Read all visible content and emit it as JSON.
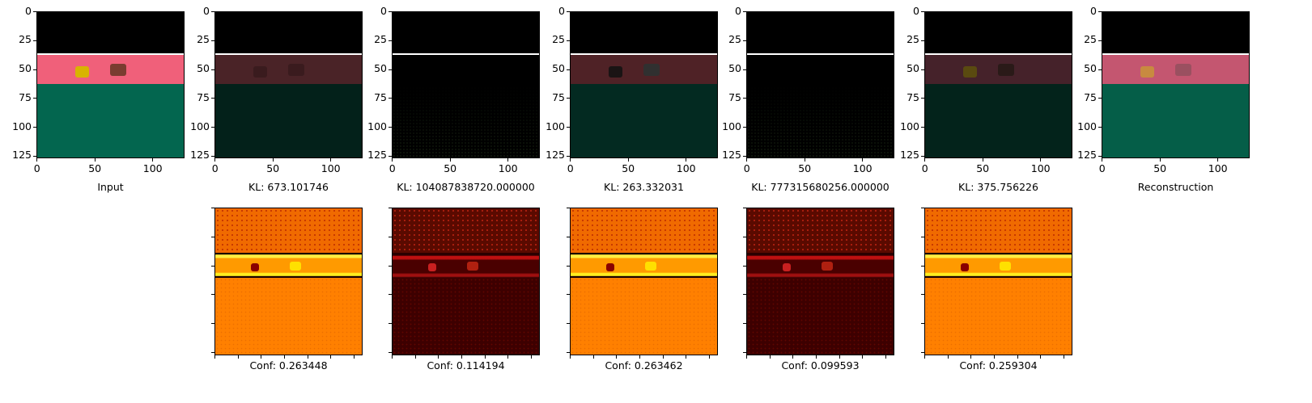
{
  "top_row": [
    {
      "caption": "Input",
      "wall": "#f0607a",
      "floor": "#03664f",
      "obj1": "#d8b400",
      "obj2": "#7a3c30",
      "dots": false
    },
    {
      "caption": "KL: 673.101746",
      "wall": "#4a2327",
      "floor": "#03211a",
      "obj1": "#3a1b1e",
      "obj2": "#3a1b1e",
      "dots": false
    },
    {
      "caption": "KL: 104087838720.000000",
      "wall": "#000000",
      "floor": "#000000",
      "obj1": "#000000",
      "obj2": "#000000",
      "dots": true
    },
    {
      "caption": "KL: 263.332031",
      "wall": "#4f2226",
      "floor": "#032a21",
      "obj1": "#1a1414",
      "obj2": "#303030",
      "dots": false
    },
    {
      "caption": "KL: 777315680256.000000",
      "wall": "#000000",
      "floor": "#000000",
      "obj1": "#000000",
      "obj2": "#000000",
      "dots": true
    },
    {
      "caption": "KL: 375.756226",
      "wall": "#45222a",
      "floor": "#03231b",
      "obj1": "#5a4a10",
      "obj2": "#2a1a18",
      "dots": false
    },
    {
      "caption": "Reconstruction",
      "wall": "#c45670",
      "floor": "#055e48",
      "obj1": "#c88a40",
      "obj2": "#9a5060",
      "dots": false
    }
  ],
  "bottom_row": [
    {
      "caption": "Conf: 0.263448",
      "variant": "bright"
    },
    {
      "caption": "Conf: 0.114194",
      "variant": "dark"
    },
    {
      "caption": "Conf: 0.263462",
      "variant": "bright"
    },
    {
      "caption": "Conf: 0.099593",
      "variant": "dark"
    },
    {
      "caption": "Conf: 0.259304",
      "variant": "bright"
    }
  ],
  "y_ticks": [
    "0",
    "25",
    "50",
    "75",
    "100",
    "125"
  ],
  "x_ticks": [
    "0",
    "50",
    "100"
  ],
  "colors": {
    "heat_bright_bg": "#ff8000",
    "heat_dark_bg": "#3d0000"
  }
}
